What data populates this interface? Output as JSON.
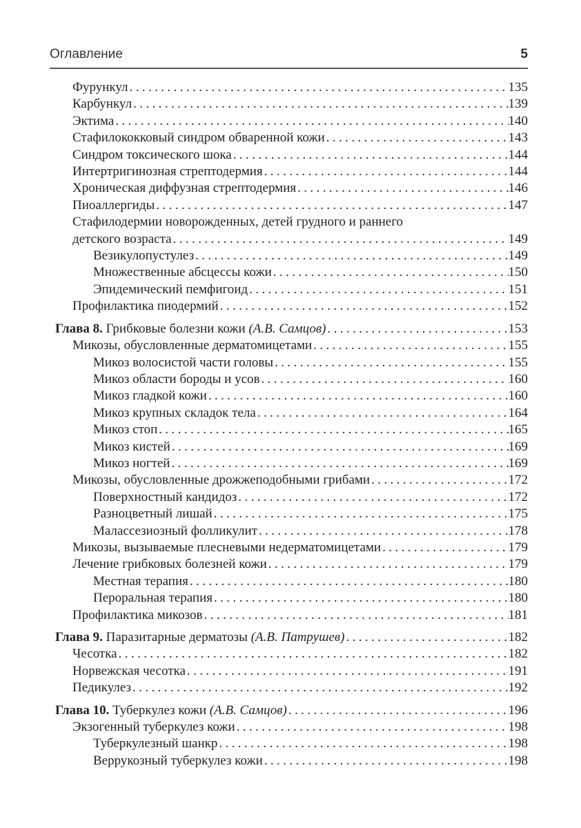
{
  "header": {
    "title": "Оглавление",
    "page_number": "5"
  },
  "colors": {
    "text": "#232327",
    "header_text": "#34343c",
    "rule": "#55555e",
    "background": "#ffffff"
  },
  "toc": {
    "entries": [
      {
        "level": 1,
        "title": "Фурункул",
        "page": "135"
      },
      {
        "level": 1,
        "title": "Карбункул",
        "page": "139"
      },
      {
        "level": 1,
        "title": "Эктима",
        "page": "140"
      },
      {
        "level": 1,
        "title": "Стафилококковый синдром обваренной кожи",
        "page": "143"
      },
      {
        "level": 1,
        "title": "Синдром токсического шока",
        "page": "144"
      },
      {
        "level": 1,
        "title": "Интертригинозная стрептодермия",
        "page": "144"
      },
      {
        "level": 1,
        "title": "Хроническая диффузная стрептодермия",
        "page": "146"
      },
      {
        "level": 1,
        "title": "Пиоаллергиды",
        "page": "147"
      },
      {
        "level": 1,
        "title": "Стафилодермии новорожденных, детей грудного и раннего",
        "page": ""
      },
      {
        "level": 1,
        "title": "детского возраста",
        "page": "149"
      },
      {
        "level": 2,
        "title": "Везикулопустулез",
        "page": "149"
      },
      {
        "level": 2,
        "title": "Множественные абсцессы кожи",
        "page": "150"
      },
      {
        "level": 2,
        "title": "Эпидемический пемфигоид",
        "page": "151"
      },
      {
        "level": 1,
        "title": "Профилактика пиодермий",
        "page": "152"
      },
      {
        "level": 0,
        "chapter_label": "Глава 8.",
        "title": "Грибковые болезни кожи",
        "author": "(А.В. Самцов)",
        "page": "153"
      },
      {
        "level": 1,
        "title": "Микозы, обусловленные дерматомицетами",
        "page": "155"
      },
      {
        "level": 2,
        "title": "Микоз волосистой части головы",
        "page": "155"
      },
      {
        "level": 2,
        "title": "Микоз области бороды и усов",
        "page": "160"
      },
      {
        "level": 2,
        "title": "Микоз гладкой кожи",
        "page": "160"
      },
      {
        "level": 2,
        "title": "Микоз крупных складок тела",
        "page": "164"
      },
      {
        "level": 2,
        "title": "Микоз стоп",
        "page": "165"
      },
      {
        "level": 2,
        "title": "Микоз кистей",
        "page": "169"
      },
      {
        "level": 2,
        "title": "Микоз ногтей",
        "page": "169"
      },
      {
        "level": 1,
        "title": "Микозы, обусловленные дрожжеподобными грибами",
        "page": "172"
      },
      {
        "level": 2,
        "title": "Поверхностный кандидоз",
        "page": "172"
      },
      {
        "level": 2,
        "title": "Разноцветный лишай",
        "page": "175"
      },
      {
        "level": 2,
        "title": "Малассезиозный фолликулит",
        "page": "178"
      },
      {
        "level": 1,
        "title": "Микозы, вызываемые плесневыми недерматомицетами",
        "page": "179"
      },
      {
        "level": 1,
        "title": "Лечение грибковых болезней кожи",
        "page": "179"
      },
      {
        "level": 2,
        "title": "Местная терапия",
        "page": "180"
      },
      {
        "level": 2,
        "title": "Пероральная терапия",
        "page": "180"
      },
      {
        "level": 1,
        "title": "Профилактика микозов",
        "page": "181"
      },
      {
        "level": 0,
        "chapter_label": "Глава 9.",
        "title": "Паразитарные дерматозы",
        "author": "(А.В. Патрушев)",
        "page": "182"
      },
      {
        "level": 1,
        "title": "Чесотка",
        "page": "182"
      },
      {
        "level": 1,
        "title": "Норвежская чесотка",
        "page": "191"
      },
      {
        "level": 1,
        "title": "Педикулез",
        "page": "192"
      },
      {
        "level": 0,
        "chapter_label": "Глава 10.",
        "title": "Туберкулез кожи",
        "author": "(А.В. Самцов)",
        "page": "196"
      },
      {
        "level": 1,
        "title": "Экзогенный туберкулез кожи",
        "page": "198"
      },
      {
        "level": 2,
        "title": "Туберкулезный шанкр",
        "page": "198"
      },
      {
        "level": 2,
        "title": "Веррукозный туберкулез кожи",
        "page": "198"
      }
    ]
  }
}
